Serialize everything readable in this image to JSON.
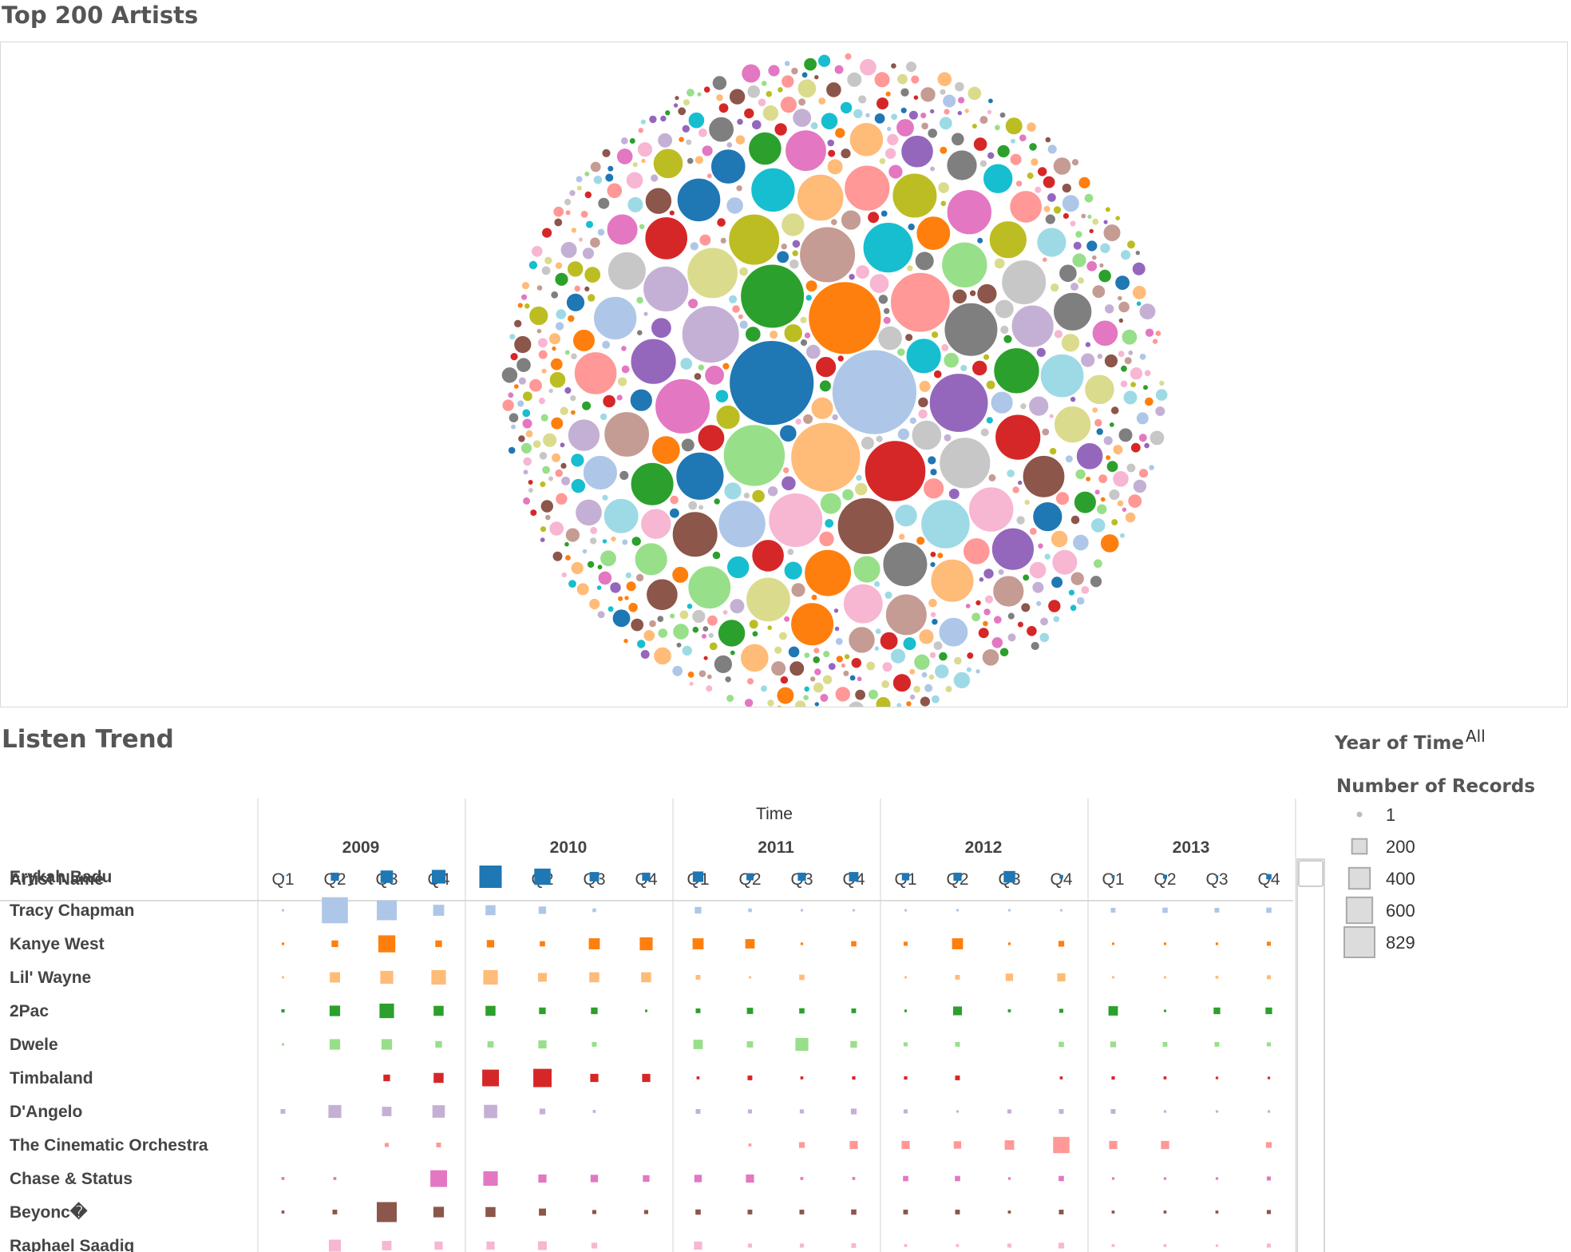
{
  "top_panel": {
    "title": "Top 200 Artists"
  },
  "trend_panel": {
    "title": "Listen Trend"
  },
  "filter": {
    "label": "Year of Time",
    "value": "All"
  },
  "legend": {
    "title": "Number of Records",
    "entries": [
      {
        "label": "1",
        "value": 1
      },
      {
        "label": "200",
        "value": 200
      },
      {
        "label": "400",
        "value": 400
      },
      {
        "label": "600",
        "value": 600
      },
      {
        "label": "829",
        "value": 829
      }
    ]
  },
  "palette": [
    "#1f77b4",
    "#aec7e8",
    "#ff7f0e",
    "#ffbb78",
    "#2ca02c",
    "#98df8a",
    "#d62728",
    "#ff9896",
    "#9467bd",
    "#c5b0d5",
    "#8c564b",
    "#c49c94",
    "#e377c2",
    "#f7b6d2",
    "#7f7f7f",
    "#c7c7c7",
    "#bcbd22",
    "#dbdb8d",
    "#17becf",
    "#9edae5"
  ],
  "chart_data": [
    {
      "type": "bubble",
      "title": "Top 200 Artists",
      "description_of_marks": "packed circles, one per artist, size = number of records, colored by artist",
      "bubble_count": 200,
      "largest_values": [
        829,
        829,
        610,
        560,
        470,
        440,
        430,
        410,
        400,
        380,
        370,
        360,
        350,
        340,
        330
      ]
    },
    {
      "type": "heatmap",
      "title": "Listen Trend",
      "column_header": "Time",
      "row_header": "Artist Name",
      "years": [
        "2009",
        "2010",
        "2011",
        "2012",
        "2013"
      ],
      "quarters": [
        "Q1",
        "Q2",
        "Q3",
        "Q4"
      ],
      "size_measure": "Number of Records",
      "size_max": 829,
      "rows": [
        {
          "name": "Erykah Badu",
          "color": "#1f77b4",
          "values": [
            4,
            60,
            140,
            170,
            450,
            240,
            80,
            60,
            100,
            45,
            60,
            80,
            50,
            60,
            120,
            12,
            8,
            15,
            6,
            25
          ]
        },
        {
          "name": "Tracy Chapman",
          "color": "#aec7e8",
          "values": [
            3,
            610,
            360,
            110,
            90,
            50,
            12,
            null,
            40,
            12,
            5,
            4,
            3,
            3,
            3,
            3,
            20,
            25,
            20,
            25
          ]
        },
        {
          "name": "Kanye West",
          "color": "#ff7f0e",
          "values": [
            6,
            40,
            260,
            40,
            50,
            25,
            110,
            150,
            110,
            80,
            6,
            25,
            15,
            110,
            6,
            30,
            5,
            6,
            6,
            15
          ]
        },
        {
          "name": "Lil' Wayne",
          "color": "#ffbb78",
          "values": [
            4,
            95,
            150,
            190,
            190,
            70,
            90,
            90,
            20,
            5,
            25,
            null,
            4,
            20,
            50,
            60,
            3,
            4,
            8,
            15
          ]
        },
        {
          "name": "2Pac",
          "color": "#2ca02c",
          "values": [
            10,
            100,
            190,
            90,
            90,
            40,
            40,
            3,
            20,
            35,
            25,
            20,
            6,
            70,
            8,
            15,
            80,
            4,
            40,
            40
          ]
        },
        {
          "name": "Dwele",
          "color": "#98df8a",
          "values": [
            5,
            100,
            100,
            40,
            35,
            60,
            20,
            null,
            80,
            35,
            150,
            40,
            15,
            20,
            null,
            25,
            30,
            20,
            20,
            15
          ]
        },
        {
          "name": "Timbaland",
          "color": "#d62728",
          "values": [
            null,
            null,
            40,
            90,
            250,
            300,
            60,
            60,
            8,
            20,
            8,
            10,
            10,
            20,
            null,
            8,
            10,
            8,
            6,
            6
          ]
        },
        {
          "name": "D'Angelo",
          "color": "#c5b0d5",
          "values": [
            20,
            150,
            80,
            140,
            160,
            30,
            8,
            null,
            20,
            15,
            15,
            30,
            15,
            4,
            15,
            20,
            20,
            6,
            6,
            6
          ]
        },
        {
          "name": "The Cinematic Orchestra",
          "color": "#ff9896",
          "values": [
            null,
            null,
            15,
            20,
            null,
            null,
            null,
            null,
            null,
            8,
            30,
            60,
            60,
            50,
            80,
            240,
            60,
            60,
            null,
            30
          ]
        },
        {
          "name": "Chase & Status",
          "color": "#e377c2",
          "values": [
            8,
            8,
            null,
            250,
            190,
            60,
            50,
            40,
            50,
            60,
            8,
            8,
            25,
            25,
            6,
            25,
            6,
            6,
            6,
            15
          ]
        },
        {
          "name": "Beyonc�",
          "color": "#8c564b",
          "values": [
            8,
            20,
            360,
            100,
            90,
            45,
            15,
            15,
            25,
            20,
            20,
            25,
            20,
            20,
            8,
            20,
            8,
            8,
            8,
            15
          ]
        },
        {
          "name": "Raphael Saadiq",
          "color": "#f7b6d2",
          "values": [
            null,
            130,
            80,
            60,
            60,
            70,
            30,
            null,
            60,
            15,
            15,
            20,
            8,
            8,
            15,
            30,
            8,
            8,
            6,
            15
          ]
        }
      ]
    }
  ]
}
